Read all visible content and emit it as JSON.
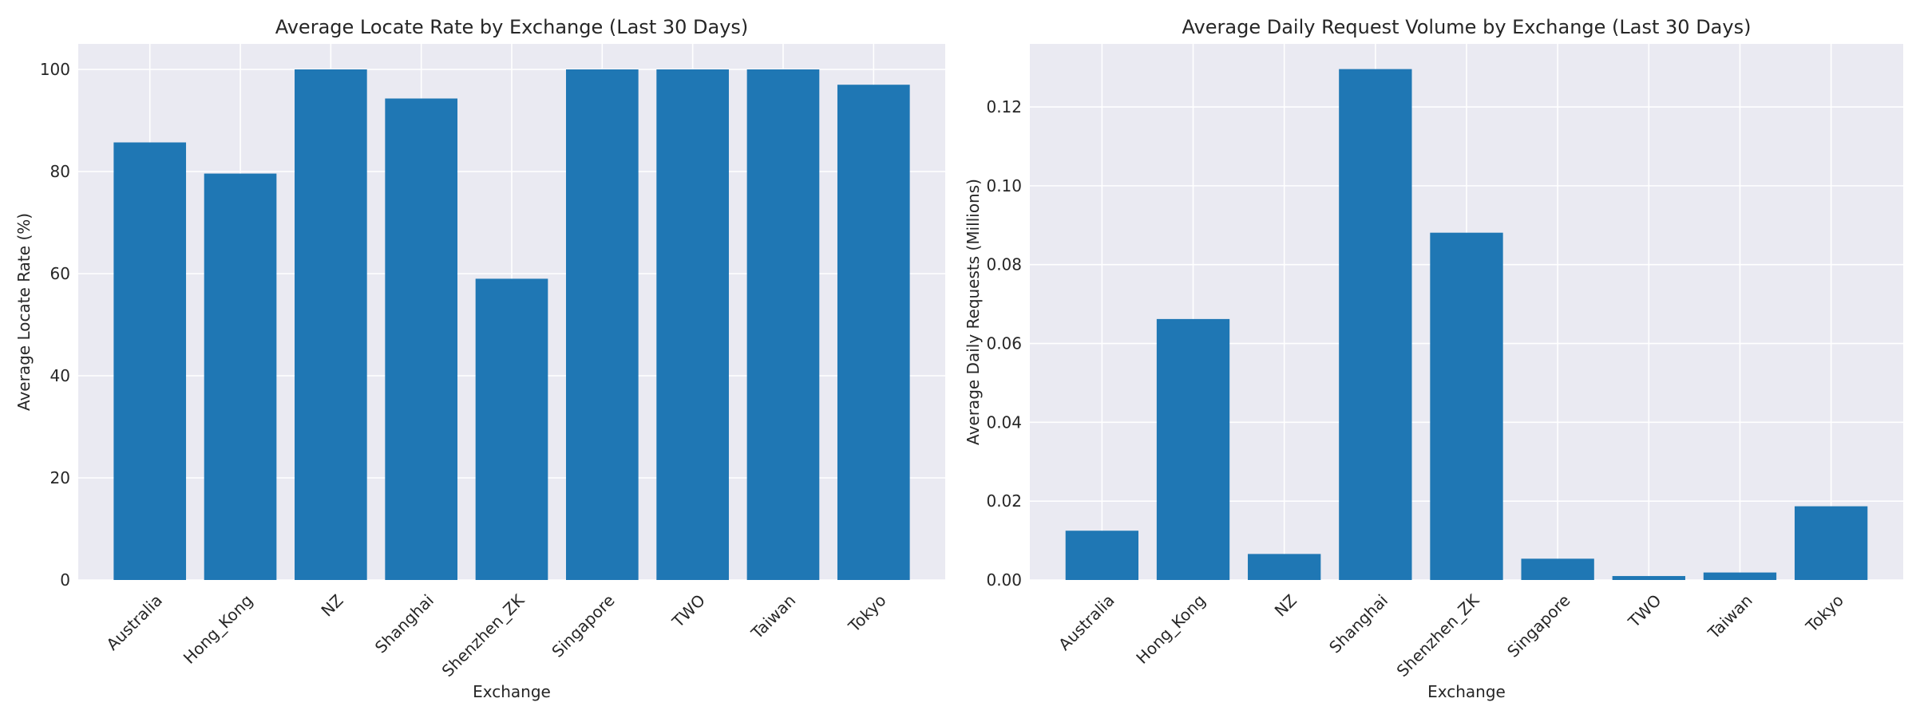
{
  "chart_data": [
    {
      "type": "bar",
      "title": "Average Locate Rate by Exchange (Last 30 Days)",
      "xlabel": "Exchange",
      "ylabel": "Average Locate Rate (%)",
      "categories": [
        "Australia",
        "Hong_Kong",
        "NZ",
        "Shanghai",
        "Shenzhen_ZK",
        "Singapore",
        "TWO",
        "Taiwan",
        "Tokyo"
      ],
      "values": [
        85.7,
        79.6,
        100,
        94.3,
        59.0,
        100,
        100,
        100,
        97.0
      ],
      "ylim": [
        0,
        105
      ],
      "yticks": [
        0,
        20,
        40,
        60,
        80,
        100
      ],
      "ytick_labels": [
        "0",
        "20",
        "40",
        "60",
        "80",
        "100"
      ],
      "grid": true,
      "color": "#1f77b4"
    },
    {
      "type": "bar",
      "title": "Average Daily Request Volume by Exchange (Last 30 Days)",
      "xlabel": "Exchange",
      "ylabel": "Average Daily Requests (Millions)",
      "categories": [
        "Australia",
        "Hong_Kong",
        "NZ",
        "Shanghai",
        "Shenzhen_ZK",
        "Singapore",
        "TWO",
        "Taiwan",
        "Tokyo"
      ],
      "values": [
        0.0125,
        0.0662,
        0.0066,
        0.1296,
        0.0881,
        0.0054,
        0.001,
        0.0019,
        0.0187
      ],
      "ylim": [
        0,
        0.136
      ],
      "yticks": [
        0,
        0.02,
        0.04,
        0.06,
        0.08,
        0.1,
        0.12
      ],
      "ytick_labels": [
        "0.00",
        "0.02",
        "0.04",
        "0.06",
        "0.08",
        "0.10",
        "0.12"
      ],
      "grid": true,
      "color": "#1f77b4"
    }
  ]
}
